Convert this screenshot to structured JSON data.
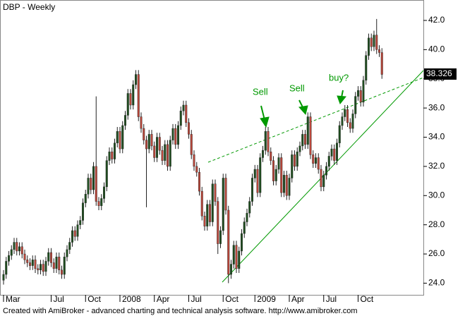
{
  "chart_data": {
    "type": "candlestick",
    "title": "DBP - Weekly",
    "categories": [
      "Mar",
      null,
      null,
      null,
      null,
      null,
      null,
      null,
      null,
      null,
      null,
      null,
      null,
      null,
      null,
      null,
      null,
      null,
      "Jul",
      null,
      null,
      null,
      null,
      null,
      null,
      null,
      null,
      null,
      null,
      null,
      null,
      "Oct",
      null,
      null,
      null,
      null,
      null,
      null,
      null,
      null,
      null,
      null,
      null,
      null,
      "2008",
      null,
      null,
      null,
      null,
      null,
      null,
      null,
      null,
      null,
      null,
      null,
      null,
      "Apr",
      null,
      null,
      null,
      null,
      null,
      null,
      null,
      null,
      null,
      null,
      null,
      null,
      "Jul",
      null,
      null,
      null,
      null,
      null,
      null,
      null,
      null,
      null,
      null,
      null,
      null,
      "Oct",
      null,
      null,
      null,
      null,
      null,
      null,
      null,
      null,
      null,
      null,
      null,
      "2009",
      null,
      null,
      null,
      null,
      null,
      null,
      null,
      null,
      null,
      null,
      null,
      null,
      "Apr",
      null,
      null,
      null,
      null,
      null,
      null,
      null,
      null,
      null,
      null,
      null,
      null,
      "Jul",
      null,
      null,
      null,
      null,
      null,
      null,
      null,
      null,
      null,
      null,
      null,
      null,
      "Oct",
      null,
      null,
      null,
      null,
      null,
      null,
      null,
      null,
      null
    ],
    "open": [
      24.2,
      24.6,
      25.5,
      25.9,
      26.3,
      26.8,
      26.2,
      26.5,
      26.0,
      25.6,
      25.4,
      25.2,
      25.6,
      25.0,
      24.9,
      25.3,
      24.8,
      25.5,
      26.1,
      25.4,
      25.0,
      25.8,
      24.9,
      24.6,
      25.8,
      26.3,
      26.8,
      27.6,
      27.2,
      28.0,
      28.3,
      29.5,
      30.1,
      31.2,
      30.4,
      32.0,
      29.6,
      29.3,
      29.8,
      30.6,
      32.4,
      33.0,
      32.5,
      33.6,
      34.4,
      33.2,
      34.8,
      35.5,
      37.0,
      36.2,
      37.6,
      38.3,
      35.4,
      34.6,
      33.8,
      33.2,
      34.2,
      33.4,
      32.6,
      34.0,
      33.1,
      32.4,
      33.5,
      32.0,
      33.8,
      34.6,
      33.5,
      34.8,
      35.8,
      36.2,
      35.0,
      34.2,
      32.8,
      32.0,
      31.6,
      30.3,
      28.6,
      27.9,
      29.4,
      28.2,
      30.8,
      29.6,
      26.7,
      27.6,
      31.2,
      29.0,
      24.6,
      25.3,
      26.6,
      25.0,
      26.2,
      27.4,
      28.2,
      28.8,
      29.6,
      31.2,
      31.8,
      30.2,
      32.6,
      33.1,
      34.4,
      33.0,
      32.4,
      31.0,
      31.8,
      32.6,
      30.2,
      31.4,
      30.0,
      31.2,
      32.8,
      32.0,
      33.0,
      33.4,
      34.2,
      33.5,
      35.4,
      32.8,
      32.2,
      32.6,
      31.8,
      30.6,
      31.4,
      32.0,
      32.7,
      33.2,
      32.4,
      33.6,
      34.8,
      35.4,
      35.9,
      35.0,
      34.6,
      35.6,
      36.8,
      37.2,
      36.4,
      37.9,
      39.6,
      40.8,
      40.2,
      41.0,
      40.0,
      39.8
    ],
    "high": [
      24.9,
      25.8,
      26.2,
      26.6,
      27.1,
      27.1,
      26.8,
      26.8,
      26.3,
      25.9,
      25.7,
      25.9,
      25.9,
      25.3,
      25.6,
      25.6,
      25.8,
      26.4,
      26.4,
      25.7,
      26.1,
      26.1,
      25.2,
      26.1,
      26.6,
      27.1,
      27.9,
      27.9,
      28.3,
      28.6,
      29.8,
      30.4,
      31.5,
      31.5,
      32.3,
      36.8,
      29.9,
      30.1,
      30.9,
      32.7,
      33.3,
      33.3,
      33.9,
      34.7,
      34.7,
      35.1,
      35.8,
      37.3,
      37.3,
      37.9,
      38.6,
      38.6,
      35.7,
      34.9,
      34.1,
      34.5,
      34.5,
      33.7,
      34.3,
      34.3,
      33.4,
      33.8,
      33.8,
      34.1,
      34.9,
      34.9,
      35.1,
      36.1,
      36.5,
      36.5,
      35.3,
      34.5,
      33.1,
      32.3,
      31.9,
      30.6,
      28.9,
      29.7,
      29.7,
      31.1,
      31.1,
      29.9,
      27.9,
      31.5,
      31.5,
      29.3,
      25.6,
      26.9,
      26.9,
      26.5,
      27.7,
      28.5,
      29.1,
      29.9,
      31.5,
      32.1,
      32.1,
      32.9,
      33.4,
      34.7,
      34.7,
      33.3,
      32.7,
      32.1,
      32.9,
      32.9,
      31.7,
      31.7,
      31.5,
      33.1,
      33.1,
      33.3,
      33.7,
      34.5,
      34.5,
      35.7,
      35.7,
      33.1,
      32.9,
      32.9,
      32.1,
      31.7,
      32.3,
      33.0,
      33.5,
      33.5,
      33.9,
      35.1,
      35.7,
      36.2,
      36.2,
      35.3,
      35.9,
      37.1,
      37.5,
      37.5,
      38.2,
      39.9,
      41.1,
      41.1,
      41.3,
      42.1,
      40.3,
      40.1
    ],
    "low": [
      23.9,
      24.3,
      25.2,
      25.6,
      26.0,
      25.9,
      25.9,
      25.7,
      25.3,
      25.1,
      24.9,
      24.9,
      24.7,
      24.6,
      24.6,
      24.5,
      24.5,
      25.2,
      25.1,
      24.7,
      24.7,
      24.6,
      24.3,
      24.3,
      25.5,
      26.0,
      26.5,
      26.9,
      26.9,
      27.7,
      28.0,
      29.2,
      29.8,
      30.1,
      30.1,
      29.3,
      29.0,
      29.0,
      29.5,
      30.3,
      32.1,
      32.2,
      32.2,
      33.3,
      32.9,
      32.9,
      34.5,
      35.2,
      35.9,
      35.9,
      37.3,
      35.1,
      34.3,
      33.5,
      29.2,
      32.9,
      33.1,
      32.3,
      32.3,
      32.8,
      32.1,
      32.1,
      31.7,
      31.7,
      33.5,
      33.2,
      33.2,
      34.5,
      35.5,
      34.7,
      33.9,
      32.5,
      31.7,
      31.3,
      30.0,
      28.3,
      27.6,
      27.6,
      27.9,
      27.9,
      29.3,
      26.0,
      26.4,
      27.3,
      28.7,
      24.0,
      24.3,
      25.0,
      24.7,
      24.7,
      25.9,
      27.1,
      27.9,
      28.5,
      29.3,
      30.9,
      29.9,
      29.9,
      32.3,
      32.8,
      32.7,
      32.1,
      30.7,
      30.7,
      31.5,
      29.9,
      29.9,
      29.7,
      29.7,
      30.9,
      31.7,
      31.7,
      32.7,
      33.1,
      33.2,
      33.2,
      32.5,
      31.9,
      31.9,
      31.5,
      30.3,
      30.3,
      31.1,
      31.7,
      32.4,
      32.1,
      32.1,
      33.3,
      34.5,
      35.1,
      34.7,
      34.3,
      34.3,
      35.3,
      36.5,
      36.1,
      36.1,
      37.6,
      39.3,
      39.9,
      39.9,
      39.7,
      39.5,
      38.0
    ],
    "close": [
      24.6,
      25.5,
      25.9,
      26.3,
      26.8,
      26.2,
      26.5,
      26.0,
      25.6,
      25.4,
      25.2,
      25.6,
      25.0,
      24.9,
      25.3,
      24.8,
      25.5,
      26.1,
      25.4,
      25.0,
      25.8,
      24.9,
      24.6,
      25.8,
      26.3,
      26.8,
      27.6,
      27.2,
      28.0,
      28.3,
      29.5,
      30.1,
      31.2,
      30.4,
      32.0,
      29.6,
      29.3,
      29.8,
      30.6,
      32.4,
      33.0,
      32.5,
      33.6,
      34.4,
      33.2,
      34.8,
      35.5,
      37.0,
      36.2,
      37.6,
      38.3,
      35.4,
      34.6,
      33.8,
      33.2,
      34.2,
      33.4,
      32.6,
      34.0,
      33.1,
      32.4,
      33.5,
      32.0,
      33.8,
      34.6,
      33.5,
      34.8,
      35.8,
      36.2,
      35.0,
      34.2,
      32.8,
      32.0,
      31.6,
      30.3,
      28.6,
      27.9,
      29.4,
      28.2,
      30.8,
      29.6,
      26.7,
      27.6,
      31.2,
      29.0,
      24.6,
      25.3,
      26.6,
      25.0,
      26.2,
      27.4,
      28.2,
      28.8,
      29.6,
      31.2,
      31.8,
      30.2,
      32.6,
      33.1,
      34.4,
      33.0,
      32.4,
      31.0,
      31.8,
      32.6,
      30.2,
      31.4,
      30.0,
      31.2,
      32.8,
      32.0,
      33.0,
      33.4,
      34.2,
      33.5,
      35.4,
      32.8,
      32.2,
      32.6,
      31.8,
      30.6,
      31.4,
      32.0,
      32.7,
      33.2,
      32.4,
      33.6,
      34.8,
      35.4,
      35.9,
      35.0,
      34.6,
      35.6,
      36.8,
      37.2,
      36.4,
      37.9,
      39.6,
      40.8,
      40.2,
      41.0,
      40.0,
      39.8,
      38.3
    ],
    "up_color": "#1f4d1f",
    "down_color": "#b8463a",
    "ylim": [
      23.2,
      43.4
    ],
    "yticks": [
      {
        "value": 24,
        "label": "24.0"
      },
      {
        "value": 26,
        "label": "26.0"
      },
      {
        "value": 28,
        "label": "28.0"
      },
      {
        "value": 30,
        "label": "30.0"
      },
      {
        "value": 32,
        "label": "32.0"
      },
      {
        "value": 34,
        "label": "34.0"
      },
      {
        "value": 36,
        "label": "36.0"
      },
      {
        "value": 38,
        "label": "38.0"
      },
      {
        "value": 40,
        "label": "40.0"
      },
      {
        "value": 42,
        "label": "42.0"
      }
    ],
    "last_value": 38.326,
    "annotations": [
      "Sell",
      "Sell",
      "buy?"
    ],
    "footer": "Created with AmiBroker - advanced charting and technical analysis software. http://www.amibroker.com"
  }
}
